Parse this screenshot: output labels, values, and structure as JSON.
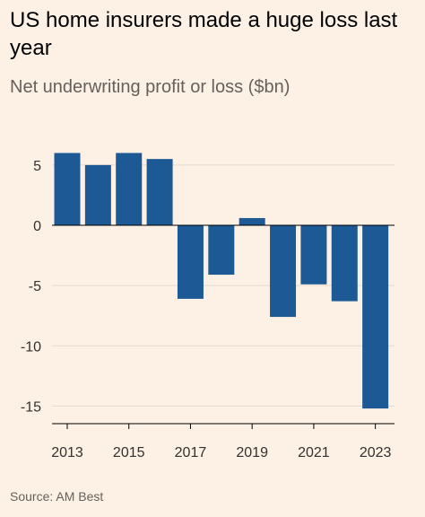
{
  "header": {
    "title": "US home insurers made a huge loss last year",
    "subtitle": "Net underwriting profit or loss ($bn)"
  },
  "chart_data": {
    "type": "bar",
    "title": "US home insurers made a huge loss last year",
    "subtitle": "Net underwriting profit or loss ($bn)",
    "xlabel": "",
    "ylabel": "",
    "categories": [
      "2013",
      "2014",
      "2015",
      "2016",
      "2017",
      "2018",
      "2019",
      "2020",
      "2021",
      "2022",
      "2023"
    ],
    "values": [
      6.0,
      5.0,
      6.0,
      5.5,
      -6.1,
      -4.1,
      0.6,
      -7.6,
      -4.9,
      -6.3,
      -15.2
    ],
    "x_tick_labels": [
      "2013",
      "2015",
      "2017",
      "2019",
      "2021",
      "2023"
    ],
    "y_ticks": [
      5,
      0,
      -5,
      -10,
      -15
    ],
    "y_tick_labels": [
      "5",
      "0",
      "-5",
      "-10",
      "-15"
    ],
    "ylim": [
      -15.2,
      7
    ],
    "grid": true,
    "bar_color": "#1d5a95",
    "grid_color": "#e6d9ce",
    "zero_line_color": "#000000"
  },
  "source": "Source: AM Best"
}
